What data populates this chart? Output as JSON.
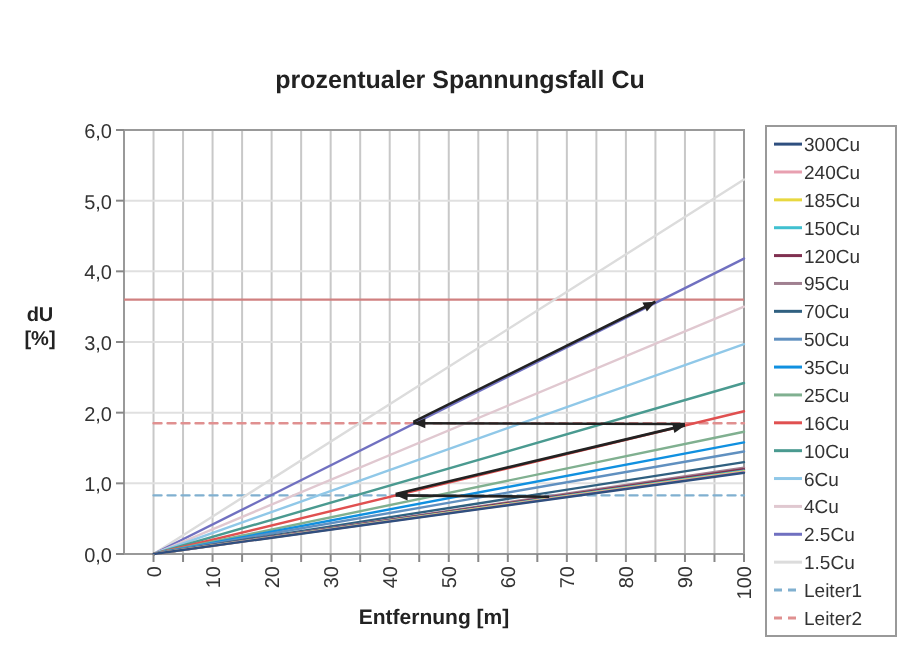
{
  "chart_data": {
    "type": "line",
    "title": "prozentualer Spannungsfall Cu",
    "xlabel": "Entfernung [m]",
    "ylabel": "dU [%]",
    "x": [
      0,
      100
    ],
    "series": [
      {
        "name": "300Cu",
        "color": "#2f4f7f",
        "values": [
          0,
          1.15
        ]
      },
      {
        "name": "240Cu",
        "color": "#e8a0b0",
        "values": [
          0,
          1.16
        ]
      },
      {
        "name": "185Cu",
        "color": "#e8d840",
        "values": [
          0,
          1.17
        ]
      },
      {
        "name": "150Cu",
        "color": "#40c0d0",
        "values": [
          0,
          1.18
        ]
      },
      {
        "name": "120Cu",
        "color": "#803050",
        "values": [
          0,
          1.2
        ]
      },
      {
        "name": "95Cu",
        "color": "#a08090",
        "values": [
          0,
          1.22
        ]
      },
      {
        "name": "70Cu",
        "color": "#306080",
        "values": [
          0,
          1.3
        ]
      },
      {
        "name": "50Cu",
        "color": "#6090c0",
        "values": [
          0,
          1.45
        ]
      },
      {
        "name": "35Cu",
        "color": "#1090e0",
        "values": [
          0,
          1.58
        ]
      },
      {
        "name": "25Cu",
        "color": "#80b090",
        "values": [
          0,
          1.73
        ]
      },
      {
        "name": "16Cu",
        "color": "#e05050",
        "values": [
          0,
          2.02
        ]
      },
      {
        "name": "10Cu",
        "color": "#4a9a90",
        "values": [
          0,
          2.42
        ]
      },
      {
        "name": "6Cu",
        "color": "#90c8e8",
        "values": [
          0,
          2.97
        ]
      },
      {
        "name": "4Cu",
        "color": "#e0c8d0",
        "values": [
          0,
          3.5
        ]
      },
      {
        "name": "2.5Cu",
        "color": "#7070c0",
        "values": [
          0,
          4.18
        ]
      },
      {
        "name": "1.5Cu",
        "color": "#dcdcdc",
        "values": [
          0,
          5.3
        ]
      },
      {
        "name": "Leiter1",
        "color": "#80b0d0",
        "values": [
          0.83,
          0.83
        ],
        "line_style": "dashed"
      },
      {
        "name": "Leiter2",
        "color": "#e09090",
        "values": [
          1.85,
          1.85
        ],
        "line_style": "dashed"
      }
    ],
    "ref_lines": [
      {
        "axis": "y",
        "value": 3.6,
        "color": "#d08080"
      }
    ],
    "xlim": [
      -5,
      100
    ],
    "xticks": [
      0,
      {
        "value": 5,
        "label": null
      },
      10,
      {
        "value": 15,
        "label": null
      },
      20,
      {
        "value": 25,
        "label": null
      },
      30,
      {
        "value": 35,
        "label": null
      },
      40,
      {
        "value": 45,
        "label": null
      },
      50,
      {
        "value": 55,
        "label": null
      },
      60,
      {
        "value": 65,
        "label": null
      },
      70,
      {
        "value": 75,
        "label": null
      },
      80,
      {
        "value": 85,
        "label": null
      },
      90,
      {
        "value": 95,
        "label": null
      },
      100
    ],
    "ylim": [
      0,
      6
    ],
    "yticks": [
      {
        "value": 0,
        "label": "0,0"
      },
      {
        "value": 1,
        "label": "1,0"
      },
      {
        "value": 2,
        "label": "2,0"
      },
      {
        "value": 3,
        "label": "3,0"
      },
      {
        "value": 4,
        "label": "4,0"
      },
      {
        "value": 5,
        "label": "5,0"
      },
      {
        "value": 6,
        "label": "6,0"
      }
    ],
    "grid": true,
    "legend": "right",
    "marker": "none",
    "line_style": "solid"
  }
}
